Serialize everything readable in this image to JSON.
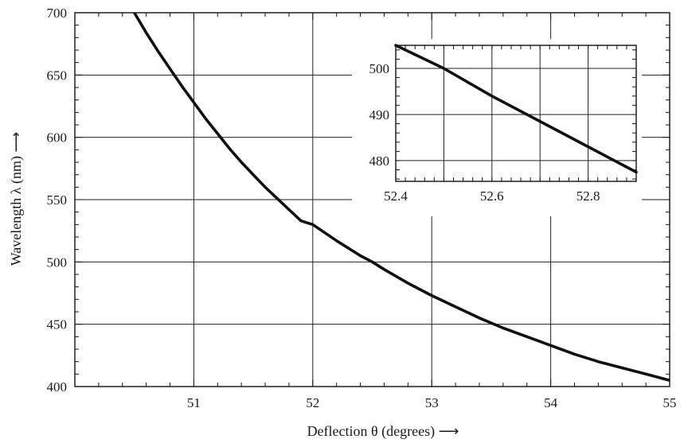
{
  "chart_data": [
    {
      "type": "line",
      "xlabel": "Deflection θ (degrees) ⟶",
      "ylabel": "Wavelength λ (nm) ⟶",
      "xlim": [
        50.0,
        55.0
      ],
      "ylim": [
        400,
        700
      ],
      "xticks": [
        51,
        52,
        53,
        54,
        55
      ],
      "yticks": [
        400,
        450,
        500,
        550,
        600,
        650,
        700
      ],
      "grid": true,
      "series": [
        {
          "x": [
            50.5,
            50.6,
            50.7,
            50.8,
            50.9,
            51.0,
            51.1,
            51.2,
            51.3,
            51.4,
            51.5,
            51.6,
            51.7,
            51.8,
            51.9,
            52.0,
            52.2,
            52.4,
            52.5,
            52.6,
            52.8,
            53.0,
            53.2,
            53.4,
            53.6,
            53.8,
            54.0,
            54.2,
            54.4,
            54.6,
            54.8,
            55.0
          ],
          "y": [
            700,
            684,
            669,
            655,
            641,
            628,
            615,
            603,
            591,
            580,
            570,
            560,
            551,
            542,
            533,
            530,
            517,
            505,
            500,
            494,
            483,
            473,
            464,
            455,
            447,
            440,
            433,
            426,
            420,
            415,
            410,
            405
          ]
        }
      ]
    },
    {
      "type": "line",
      "inset": true,
      "xlim": [
        52.4,
        52.9
      ],
      "ylim": [
        475.5,
        505
      ],
      "xticks": [
        52.4,
        52.6,
        52.8
      ],
      "xtick_labels": [
        "52.4",
        "52.6",
        "52.8"
      ],
      "yticks": [
        480,
        490,
        500
      ],
      "grid": true,
      "series": [
        {
          "x": [
            52.4,
            52.5,
            52.6,
            52.7,
            52.8,
            52.9
          ],
          "y": [
            505,
            500,
            494,
            488.5,
            483,
            477.5
          ]
        }
      ]
    }
  ]
}
